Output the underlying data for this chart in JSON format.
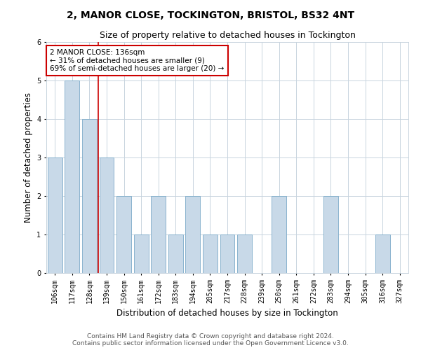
{
  "title": "2, MANOR CLOSE, TOCKINGTON, BRISTOL, BS32 4NT",
  "subtitle": "Size of property relative to detached houses in Tockington",
  "xlabel": "Distribution of detached houses by size in Tockington",
  "ylabel": "Number of detached properties",
  "categories": [
    "106sqm",
    "117sqm",
    "128sqm",
    "139sqm",
    "150sqm",
    "161sqm",
    "172sqm",
    "183sqm",
    "194sqm",
    "205sqm",
    "217sqm",
    "228sqm",
    "239sqm",
    "250sqm",
    "261sqm",
    "272sqm",
    "283sqm",
    "294sqm",
    "305sqm",
    "316sqm",
    "327sqm"
  ],
  "values": [
    3,
    5,
    4,
    3,
    2,
    1,
    2,
    1,
    2,
    1,
    1,
    1,
    0,
    2,
    0,
    0,
    2,
    0,
    0,
    1,
    0
  ],
  "bar_color": "#c8d9e8",
  "bar_edgecolor": "#7baac8",
  "reference_line_index": 2,
  "reference_line_color": "#cc0000",
  "annotation_text": "2 MANOR CLOSE: 136sqm\n← 31% of detached houses are smaller (9)\n69% of semi-detached houses are larger (20) →",
  "annotation_box_facecolor": "#ffffff",
  "annotation_box_edgecolor": "#cc0000",
  "ylim": [
    0,
    6
  ],
  "yticks": [
    0,
    1,
    2,
    3,
    4,
    5,
    6
  ],
  "footer1": "Contains HM Land Registry data © Crown copyright and database right 2024.",
  "footer2": "Contains public sector information licensed under the Open Government Licence v3.0.",
  "bg_color": "#ffffff",
  "grid_color": "#c8d4de",
  "title_fontsize": 10,
  "subtitle_fontsize": 9,
  "axis_label_fontsize": 8.5,
  "tick_fontsize": 7,
  "annotation_fontsize": 7.5,
  "footer_fontsize": 6.5
}
